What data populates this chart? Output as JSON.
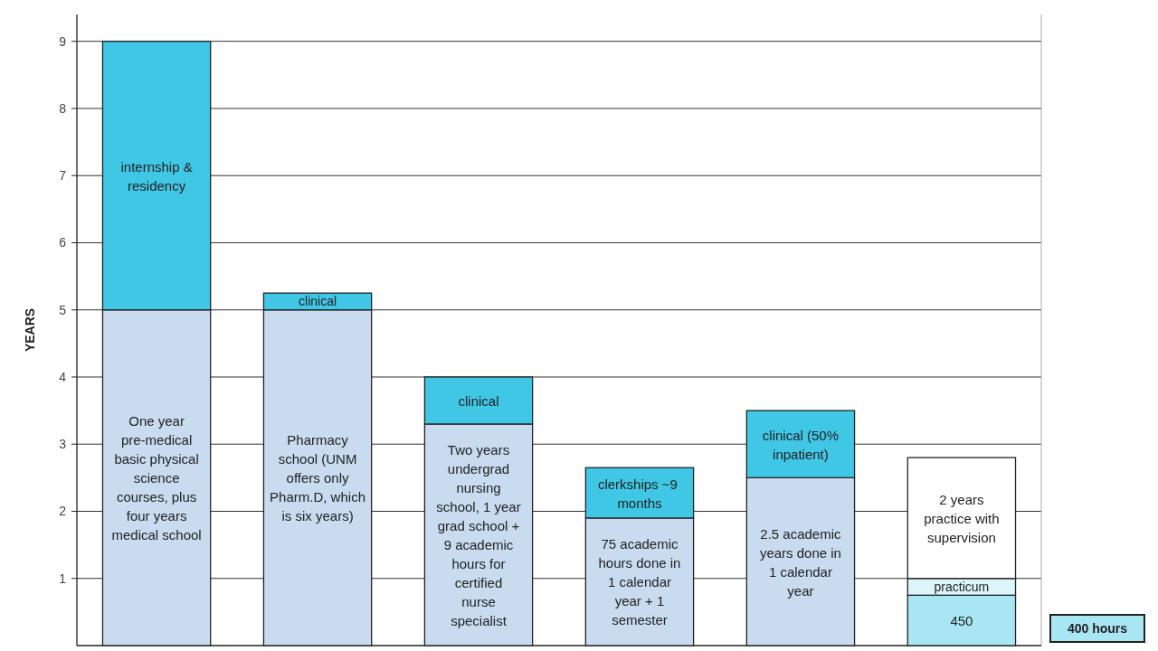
{
  "chart_data": {
    "type": "bar",
    "stacked": true,
    "ylabel": "YEARS",
    "categories": [
      null,
      null,
      null,
      null,
      null,
      null
    ],
    "ylim": [
      0,
      9.4
    ],
    "yticks": [
      1,
      2,
      3,
      4,
      5,
      6,
      7,
      8,
      9
    ],
    "grid": "y",
    "series": [
      {
        "name": "One year pre-medical basic physical science courses, plus four years medical school",
        "color": "#c9dcef",
        "values": [
          5,
          null,
          null,
          null,
          null,
          null
        ]
      },
      {
        "name": "internship & residency",
        "color": "#3fc7e5",
        "values": [
          4,
          null,
          null,
          null,
          null,
          null
        ]
      },
      {
        "name": "Pharmacy school (UNM offers only Pharm.D, which is six years)",
        "color": "#c9dcef",
        "values": [
          null,
          5,
          null,
          null,
          null,
          null
        ]
      },
      {
        "name": "clinical",
        "color": "#3fc7e5",
        "values": [
          null,
          0.25,
          null,
          null,
          null,
          null
        ]
      },
      {
        "name": "Two years undergrad nursing school, 1 year grad school + 9 academic hours for certified nurse specialist",
        "color": "#c9dcef",
        "values": [
          null,
          null,
          3.3,
          null,
          null,
          null
        ]
      },
      {
        "name": "clinical",
        "color": "#3fc7e5",
        "values": [
          null,
          null,
          0.7,
          null,
          null,
          null
        ]
      },
      {
        "name": "75 academic hours done in 1 calendar year + 1 semester",
        "color": "#c9dcef",
        "values": [
          null,
          null,
          null,
          1.9,
          null,
          null
        ]
      },
      {
        "name": "clerkships ~9  months",
        "color": "#3fc7e5",
        "values": [
          null,
          null,
          null,
          0.75,
          null,
          null
        ]
      },
      {
        "name": "2.5 academic years done in 1 calendar year",
        "color": "#c9dcef",
        "values": [
          null,
          null,
          null,
          null,
          2.5,
          null
        ]
      },
      {
        "name": "clinical (50% inpatient)",
        "color": "#3fc7e5",
        "values": [
          null,
          null,
          null,
          null,
          1.0,
          null
        ]
      },
      {
        "name": "450",
        "color": "#a9e6f4",
        "values": [
          null,
          null,
          null,
          null,
          null,
          0.75
        ]
      },
      {
        "name": "practicum",
        "color": "#dcf5fb",
        "values": [
          null,
          null,
          null,
          null,
          null,
          0.25
        ]
      },
      {
        "name": "2 years practice with supervision",
        "color": "#ffffff",
        "values": [
          null,
          null,
          null,
          null,
          null,
          1.8
        ]
      }
    ],
    "annotations": [
      "400 hours"
    ]
  }
}
